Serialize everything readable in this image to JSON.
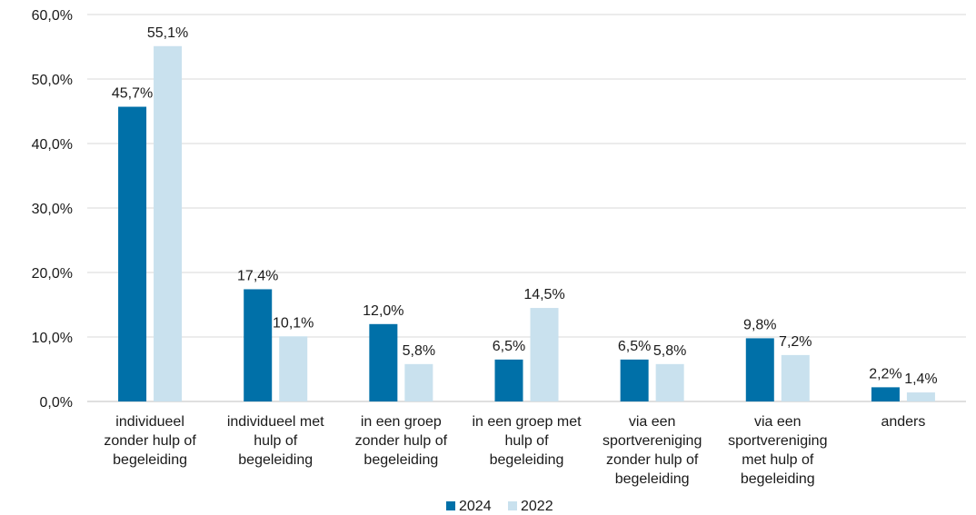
{
  "chart_data": {
    "type": "bar",
    "categories": [
      [
        "individueel",
        "zonder hulp of",
        "begeleiding"
      ],
      [
        "individueel met",
        "hulp of",
        "begeleiding"
      ],
      [
        "in een groep",
        "zonder hulp of",
        "begeleiding"
      ],
      [
        "in een groep met",
        "hulp of",
        "begeleiding"
      ],
      [
        "via een",
        "sportvereniging",
        "zonder hulp of",
        "begeleiding"
      ],
      [
        "via een",
        "sportvereniging",
        "met hulp of",
        "begeleiding"
      ],
      [
        "anders"
      ]
    ],
    "series": [
      {
        "name": "2024",
        "color": "#0070a8",
        "values": [
          45.7,
          17.4,
          12.0,
          6.5,
          6.5,
          9.8,
          2.2
        ],
        "labels": [
          "45,7%",
          "17,4%",
          "12,0%",
          "6,5%",
          "6,5%",
          "9,8%",
          "2,2%"
        ]
      },
      {
        "name": "2022",
        "color": "#c9e1ee",
        "values": [
          55.1,
          10.1,
          5.8,
          14.5,
          5.8,
          7.2,
          1.4
        ],
        "labels": [
          "55,1%",
          "10,1%",
          "5,8%",
          "14,5%",
          "5,8%",
          "7,2%",
          "1,4%"
        ]
      }
    ],
    "ylim": [
      0,
      60
    ],
    "yticks": [
      {
        "value": 0,
        "label": "0,0%"
      },
      {
        "value": 10,
        "label": "10,0%"
      },
      {
        "value": 20,
        "label": "20,0%"
      },
      {
        "value": 30,
        "label": "30,0%"
      },
      {
        "value": 40,
        "label": "40,0%"
      },
      {
        "value": 50,
        "label": "50,0%"
      },
      {
        "value": 60,
        "label": "60,0%"
      }
    ],
    "grid": true,
    "legend_position": "bottom"
  }
}
